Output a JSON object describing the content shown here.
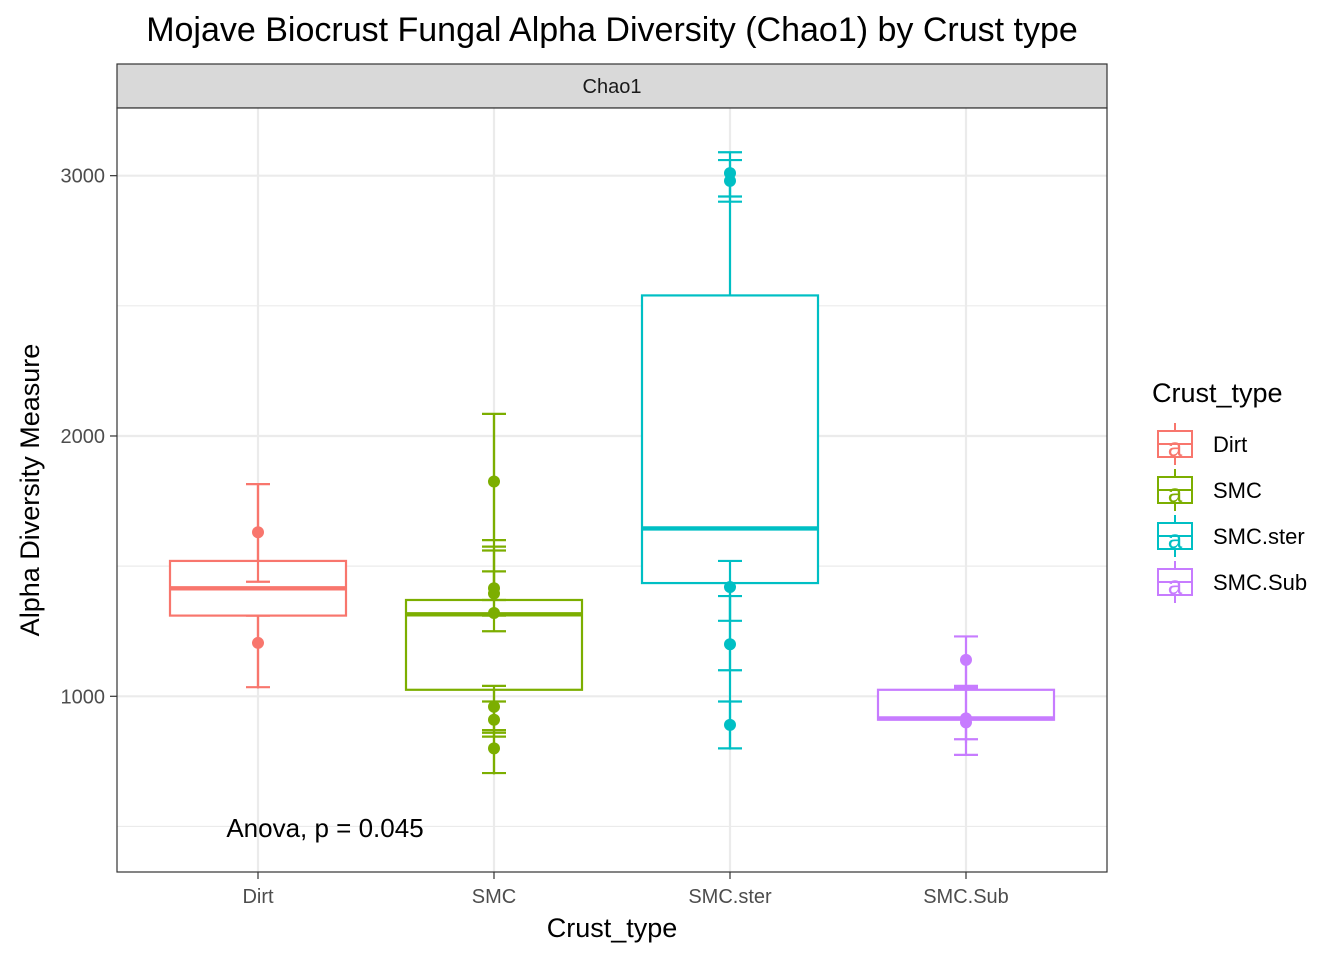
{
  "chart_data": {
    "type": "box",
    "title": "Mojave Biocrust Fungal Alpha Diversity (Chao1) by Crust type",
    "facet_label": "Chao1",
    "xlabel": "Crust_type",
    "ylabel": "Alpha Diversity Measure",
    "ylim": [
      325,
      3260
    ],
    "y_ticks": [
      1000,
      2000,
      3000
    ],
    "y_minor_ticks": [
      500,
      1500,
      2500
    ],
    "categories": [
      "Dirt",
      "SMC",
      "SMC.ster",
      "SMC.Sub"
    ],
    "colors": {
      "Dirt": "#F8766D",
      "SMC": "#7CAE00",
      "SMC.ster": "#00BFC4",
      "SMC.Sub": "#C77CFF"
    },
    "annotation": "Anova, p = 0.045",
    "legend": {
      "title": "Crust_type",
      "position": "right",
      "key_glyph": "a"
    },
    "boxes": [
      {
        "category": "Dirt",
        "whisker_low": 1030,
        "q1": 1310,
        "median": 1415,
        "q3": 1520,
        "whisker_high": 1815
      },
      {
        "category": "SMC",
        "whisker_low": 700,
        "q1": 1025,
        "median": 1315,
        "q3": 1370,
        "whisker_high": 2085
      },
      {
        "category": "SMC.ster",
        "whisker_low": 795,
        "q1": 1435,
        "median": 1645,
        "q3": 2540,
        "whisker_high": 3015
      },
      {
        "category": "SMC.Sub",
        "whisker_low": 820,
        "q1": 910,
        "median": 915,
        "q3": 1025,
        "whisker_high": 1145
      }
    ],
    "points": [
      {
        "category": "Dirt",
        "value": 1630,
        "err_low": 1440,
        "err_high": 1815
      },
      {
        "category": "Dirt",
        "value": 1205,
        "err_low": 1035,
        "err_high": 1310
      },
      {
        "category": "SMC",
        "value": 1825,
        "err_low": 1600,
        "err_high": 2085
      },
      {
        "category": "SMC",
        "value": 1415,
        "err_low": 1370,
        "err_high": 1560
      },
      {
        "category": "SMC",
        "value": 1395,
        "err_low": 1310,
        "err_high": 1480
      },
      {
        "category": "SMC",
        "value": 1320,
        "err_low": 1250,
        "err_high": 1575
      },
      {
        "category": "SMC",
        "value": 960,
        "err_low": 870,
        "err_high": 1040
      },
      {
        "category": "SMC",
        "value": 910,
        "err_low": 845,
        "err_high": 980
      },
      {
        "category": "SMC",
        "value": 800,
        "err_low": 705,
        "err_high": 860
      },
      {
        "category": "SMC.ster",
        "value": 3010,
        "err_low": 2920,
        "err_high": 3090
      },
      {
        "category": "SMC.ster",
        "value": 2980,
        "err_low": 2900,
        "err_high": 3060
      },
      {
        "category": "SMC.ster",
        "value": 1420,
        "err_low": 1290,
        "err_high": 1520
      },
      {
        "category": "SMC.ster",
        "value": 890,
        "err_low": 800,
        "err_high": 980
      },
      {
        "category": "SMC.ster",
        "value": 1200,
        "err_low": 1100,
        "err_high": 1385
      },
      {
        "category": "SMC.Sub",
        "value": 1140,
        "err_low": 1040,
        "err_high": 1230
      },
      {
        "category": "SMC.Sub",
        "value": 900,
        "err_low": 775,
        "err_high": 1035
      },
      {
        "category": "SMC.Sub",
        "value": 915,
        "err_low": 835,
        "err_high": 1030
      }
    ]
  }
}
